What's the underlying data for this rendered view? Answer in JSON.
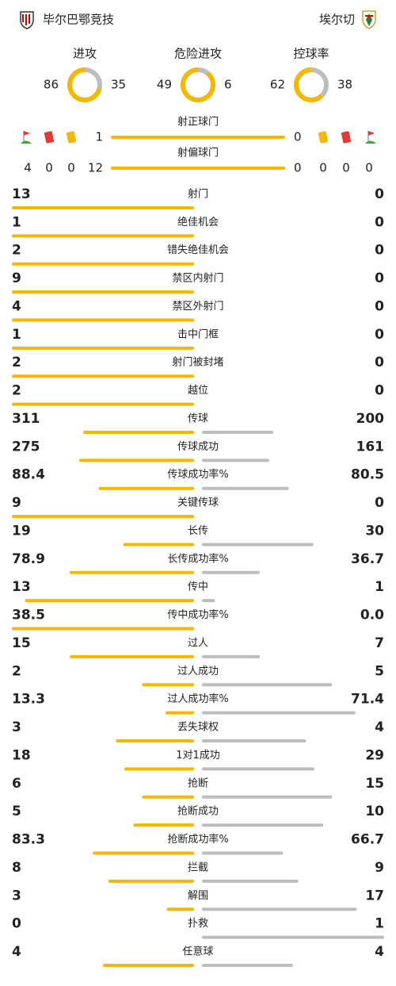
{
  "header": {
    "home": "毕尔巴鄂竞技",
    "away": "埃尔切"
  },
  "donuts": [
    {
      "label": "进攻",
      "home": 86,
      "away": 35
    },
    {
      "label": "危险进攻",
      "home": 49,
      "away": 6
    },
    {
      "label": "控球率",
      "home": 62,
      "away": 38
    }
  ],
  "shots_on": {
    "label": "射正球门",
    "home": 1,
    "away": 0
  },
  "shots_off": {
    "label": "射偏球门",
    "home": 12,
    "away": 0
  },
  "discipline": {
    "home": {
      "corners": 4,
      "red": 0,
      "yellow": 0
    },
    "away": {
      "yellow": 0,
      "red": 0,
      "corners": 0
    }
  },
  "stats": [
    {
      "label": "射门",
      "home": 13,
      "away": 0
    },
    {
      "label": "绝佳机会",
      "home": 1,
      "away": 0
    },
    {
      "label": "错失绝佳机会",
      "home": 2,
      "away": 0
    },
    {
      "label": "禁区内射门",
      "home": 9,
      "away": 0
    },
    {
      "label": "禁区外射门",
      "home": 4,
      "away": 0
    },
    {
      "label": "击中门框",
      "home": 1,
      "away": 0
    },
    {
      "label": "射门被封堵",
      "home": 2,
      "away": 0
    },
    {
      "label": "越位",
      "home": 2,
      "away": 0
    },
    {
      "label": "传球",
      "home": 311,
      "away": 200
    },
    {
      "label": "传球成功",
      "home": 275,
      "away": 161
    },
    {
      "label": "传球成功率%",
      "home": 88.4,
      "away": 80.5
    },
    {
      "label": "关键传球",
      "home": 9,
      "away": 0
    },
    {
      "label": "长传",
      "home": 19,
      "away": 30
    },
    {
      "label": "长传成功率%",
      "home": 78.9,
      "away": 36.7
    },
    {
      "label": "传中",
      "home": 13,
      "away": 1
    },
    {
      "label": "传中成功率%",
      "home": 38.5,
      "away": 0,
      "away_label": "0.0"
    },
    {
      "label": "过人",
      "home": 15,
      "away": 7
    },
    {
      "label": "过人成功",
      "home": 2,
      "away": 5
    },
    {
      "label": "过人成功率%",
      "home": 13.3,
      "away": 71.4
    },
    {
      "label": "丢失球权",
      "home": 3,
      "away": 4
    },
    {
      "label": "1对1成功",
      "home": 18,
      "away": 29
    },
    {
      "label": "抢断",
      "home": 6,
      "away": 15
    },
    {
      "label": "抢断成功",
      "home": 5,
      "away": 10
    },
    {
      "label": "抢断成功率%",
      "home": 83.3,
      "away": 66.7
    },
    {
      "label": "拦截",
      "home": 8,
      "away": 9
    },
    {
      "label": "解围",
      "home": 3,
      "away": 17
    },
    {
      "label": "扑救",
      "home": 0,
      "away": 1
    },
    {
      "label": "任意球",
      "home": 4,
      "away": 4
    }
  ]
}
